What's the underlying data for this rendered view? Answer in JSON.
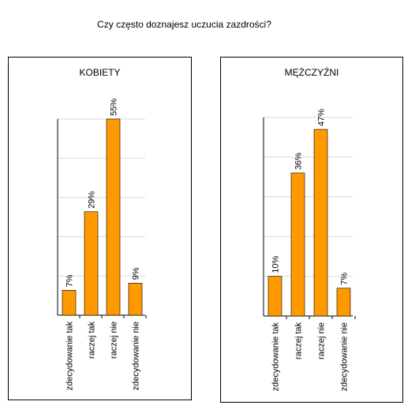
{
  "title": "Czy często doznajesz uczucia zazdrości?",
  "colors": {
    "bar": "#FF9900",
    "bar_stroke": "#000000",
    "grid": "#D9D9D9",
    "axis": "#000000"
  },
  "chart_data": [
    {
      "type": "bar",
      "title": "KOBIETY",
      "categories": [
        "zdecydowanie tak",
        "raczej tak",
        "raczej nie",
        "zdecydowanie nie"
      ],
      "values": [
        7,
        29,
        55,
        9
      ],
      "data_labels": [
        "7%",
        "29%",
        "55%",
        "9%"
      ],
      "ylim": [
        0,
        55
      ],
      "grid": true,
      "legend": "none"
    },
    {
      "type": "bar",
      "title": "MĘŻCZYŹNI",
      "categories": [
        "zdecydowanie tak",
        "raczej tak",
        "raczej nie",
        "zdecydowanie nie"
      ],
      "values": [
        10,
        36,
        47,
        7
      ],
      "data_labels": [
        "10%",
        "36%",
        "47%",
        "7%"
      ],
      "ylim": [
        0,
        50
      ],
      "grid": true,
      "legend": "none"
    }
  ]
}
